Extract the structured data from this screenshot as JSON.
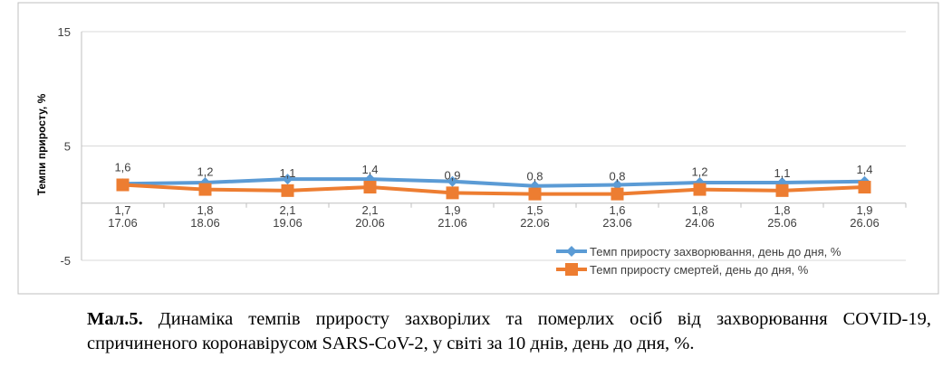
{
  "chart_data": {
    "type": "line",
    "categories": [
      "17.06",
      "18.06",
      "19.06",
      "20.06",
      "21.06",
      "22.06",
      "23.06",
      "24.06",
      "25.06",
      "26.06"
    ],
    "ylabel": "Темпи приросту, %",
    "ylim": [
      -5,
      15
    ],
    "yticks": [
      "15",
      "5",
      "-5"
    ],
    "grid": true,
    "legend_position": "bottom-right",
    "series": [
      {
        "name": "Темп приросту захворювання, день до дня, %",
        "color": "#5b9bd5",
        "marker": "diamond",
        "values": [
          1.7,
          1.8,
          2.1,
          2.1,
          1.9,
          1.5,
          1.6,
          1.8,
          1.8,
          1.9
        ],
        "labels": [
          "1,7",
          "1,8",
          "2,1",
          "2,1",
          "1,9",
          "1,5",
          "1,6",
          "1,8",
          "1,8",
          "1,9"
        ]
      },
      {
        "name": "Темп приросту смертей, день до дня, %",
        "color": "#ed7d31",
        "marker": "square",
        "values": [
          1.6,
          1.2,
          1.1,
          1.4,
          0.9,
          0.8,
          0.8,
          1.2,
          1.1,
          1.4
        ],
        "labels": [
          "1,6",
          "1,2",
          "1,1",
          "1,4",
          "0,9",
          "0,8",
          "0,8",
          "1,2",
          "1,1",
          "1,4"
        ]
      }
    ]
  },
  "caption": {
    "label": "Мал.5.",
    "text": " Динаміка темпів приросту захворілих та померлих осіб від захворювання COVID-19, спричиненого коронавірусом SARS-CoV-2, у світі за 10 днів, день до дня, %."
  }
}
